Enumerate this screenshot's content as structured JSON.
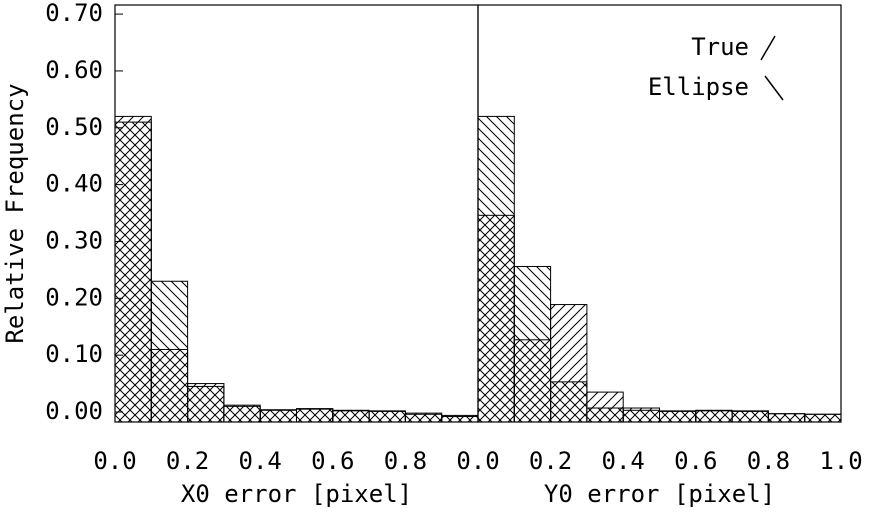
{
  "chart_data": [
    {
      "type": "histogram",
      "xlabel": "X0 error [pixel]",
      "ylabel": "Relative Frequency",
      "bins": [
        0,
        0.1,
        0.2,
        0.3,
        0.4,
        0.5,
        0.6,
        0.7,
        0.8,
        0.9,
        1.0
      ],
      "xlim": [
        0,
        1.0
      ],
      "ylim": [
        -0.0176,
        0.716
      ],
      "xticks": [
        {
          "value": 0,
          "label": "0.0"
        },
        {
          "value": 0.2,
          "label": "0.2"
        },
        {
          "value": 0.4,
          "label": "0.4"
        },
        {
          "value": 0.6,
          "label": "0.6"
        },
        {
          "value": 0.8,
          "label": "0.8"
        }
      ],
      "yticks": [
        {
          "value": 0,
          "label": "0.00"
        },
        {
          "value": 0.1,
          "label": "0.10"
        },
        {
          "value": 0.2,
          "label": "0.20"
        },
        {
          "value": 0.3,
          "label": "0.30"
        },
        {
          "value": 0.4,
          "label": "0.40"
        },
        {
          "value": 0.5,
          "label": "0.50"
        },
        {
          "value": 0.6,
          "label": "0.60"
        },
        {
          "value": 0.7,
          "label": "0.70"
        }
      ],
      "series": [
        {
          "name": "True",
          "hatch": "/",
          "values": [
            0.52,
            0.11,
            0.05,
            0.012,
            0.004,
            0.006,
            0.002,
            0.002,
            -0.002,
            -0.008
          ]
        },
        {
          "name": "Ellipse",
          "hatch": "\\",
          "values": [
            0.51,
            0.23,
            0.045,
            0.01,
            0.003,
            0.005,
            0.003,
            0.001,
            -0.004,
            -0.006
          ]
        }
      ]
    },
    {
      "type": "histogram",
      "xlabel": "Y0 error [pixel]",
      "legend": "top-right",
      "bins": [
        0,
        0.1,
        0.2,
        0.3,
        0.4,
        0.5,
        0.6,
        0.7,
        0.8,
        0.9,
        1.0
      ],
      "xlim": [
        0,
        1.0
      ],
      "ylim": [
        -0.0176,
        0.716
      ],
      "xticks": [
        {
          "value": 0,
          "label": "0.0"
        },
        {
          "value": 0.2,
          "label": "0.2"
        },
        {
          "value": 0.4,
          "label": "0.4"
        },
        {
          "value": 0.6,
          "label": "0.6"
        },
        {
          "value": 0.8,
          "label": "0.8"
        },
        {
          "value": 1.0,
          "label": "1.0"
        }
      ],
      "series": [
        {
          "name": "True",
          "hatch": "/",
          "values": [
            0.346,
            0.127,
            0.189,
            0.035,
            0.007,
            0.002,
            0.002,
            0.001,
            -0.003,
            -0.004
          ]
        },
        {
          "name": "Ellipse",
          "hatch": "\\",
          "values": [
            0.52,
            0.256,
            0.053,
            0.007,
            0.003,
            0.001,
            0.003,
            0.002,
            -0.003,
            -0.004
          ]
        }
      ]
    }
  ]
}
